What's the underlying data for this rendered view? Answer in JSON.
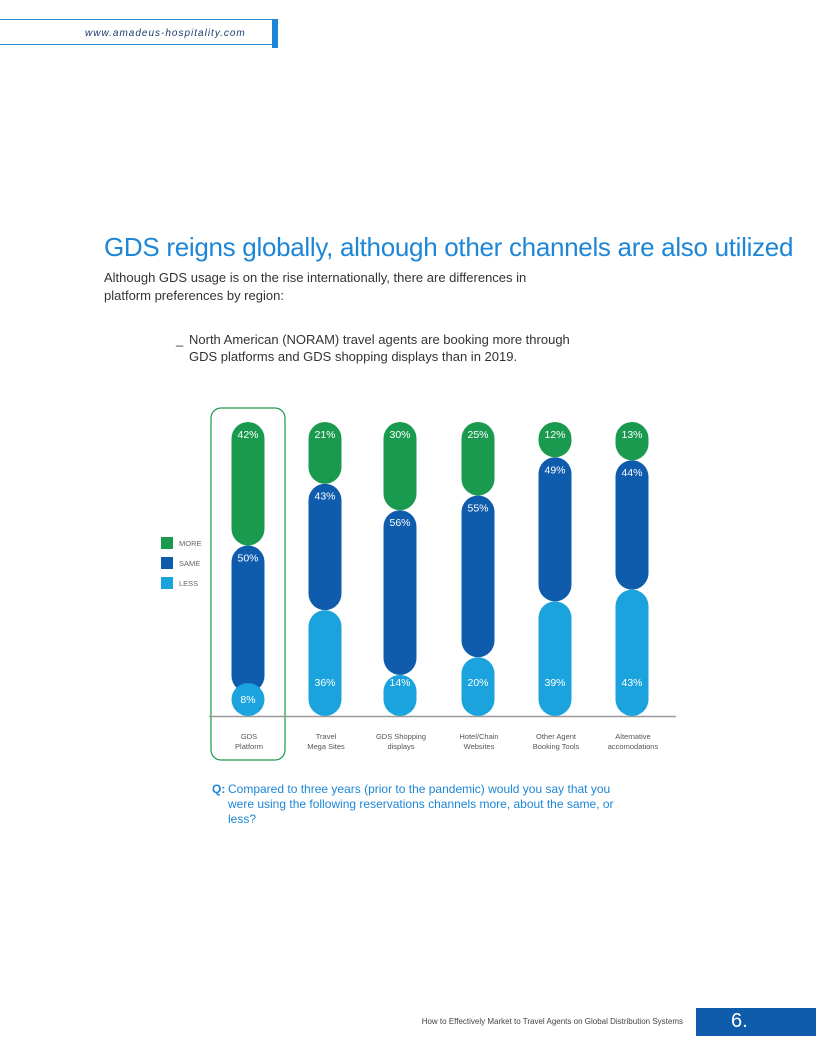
{
  "header": {
    "url": "www.amadeus-hospitality.com"
  },
  "headline": "GDS reigns globally, although other channels are also utilized",
  "intro": "Although GDS usage is on the rise internationally, there are differences in platform preferences by region:",
  "bullet": {
    "mark": "_",
    "text": "North American (NORAM) travel agents are booking more through GDS platforms and GDS shopping displays than in 2019."
  },
  "chart_data": {
    "type": "bar",
    "stacked": true,
    "units": "%",
    "highlighted_category": "GDS Platform",
    "categories": [
      "GDS Platform",
      "Travel Mega Sites",
      "GDS Shopping displays",
      "Hotel/Chain Websites",
      "Other Agent Booking Tools",
      "Alternative accomodations"
    ],
    "category_lines": [
      [
        "GDS",
        "Platform"
      ],
      [
        "Travel",
        "Mega Sites"
      ],
      [
        "GDS Shopping",
        "displays"
      ],
      [
        "Hotel/Chain",
        "Websites"
      ],
      [
        "Other Agent",
        "Booking Tools"
      ],
      [
        "Alternative",
        "accomodations"
      ]
    ],
    "series": [
      {
        "name": "MORE",
        "color": "#1a9a4e",
        "values": [
          42,
          21,
          30,
          25,
          12,
          13
        ]
      },
      {
        "name": "SAME",
        "color": "#0f5cad",
        "values": [
          50,
          43,
          56,
          55,
          49,
          44
        ]
      },
      {
        "name": "LESS",
        "color": "#1aa3dc",
        "values": [
          8,
          36,
          14,
          20,
          39,
          43
        ]
      }
    ],
    "data_labels": [
      [
        "42%",
        "21%",
        "30%",
        "25%",
        "12%",
        "13%"
      ],
      [
        "50%",
        "43%",
        "56%",
        "55%",
        "49%",
        "44%"
      ],
      [
        "8%",
        "36%",
        "14%",
        "20%",
        "39%",
        "43%"
      ]
    ],
    "legend_position": "left",
    "ylim": [
      0,
      100
    ],
    "grid": false
  },
  "question": {
    "prefix": "Q:",
    "text": "Compared to three years (prior to the pandemic) would you say that you were using the following reservations channels more, about the same, or less?"
  },
  "footer": {
    "text": "How to Effectively Market to Travel Agents on Global Distribution Systems",
    "page": "6."
  }
}
